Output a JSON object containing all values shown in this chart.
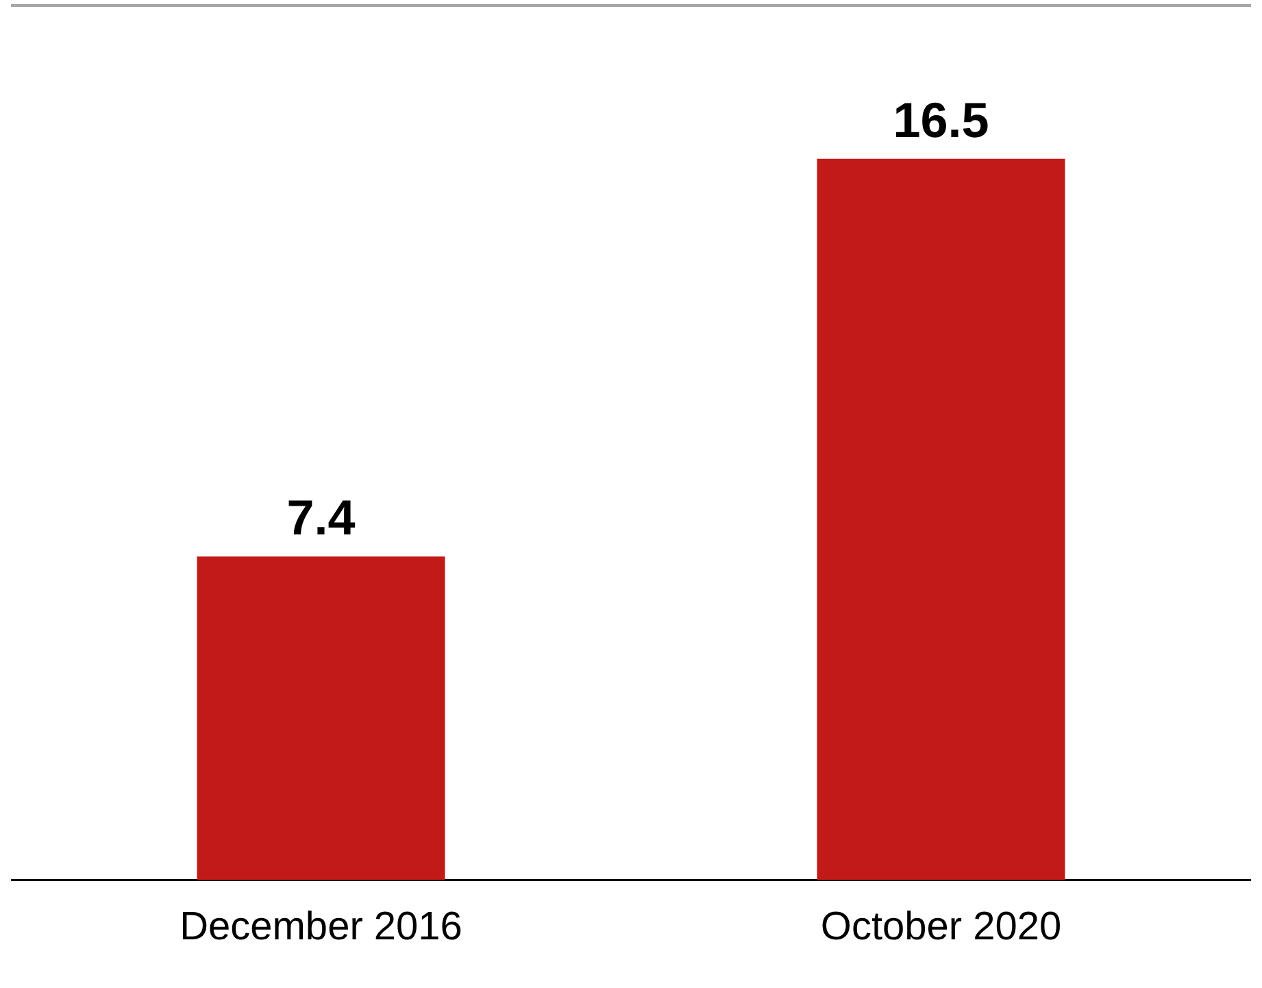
{
  "chart_data": {
    "type": "bar",
    "categories": [
      "December 2016",
      "October 2020"
    ],
    "values": [
      7.4,
      16.5
    ],
    "color": "#c21a18",
    "data_labels": true,
    "legend": false,
    "grid": false
  }
}
